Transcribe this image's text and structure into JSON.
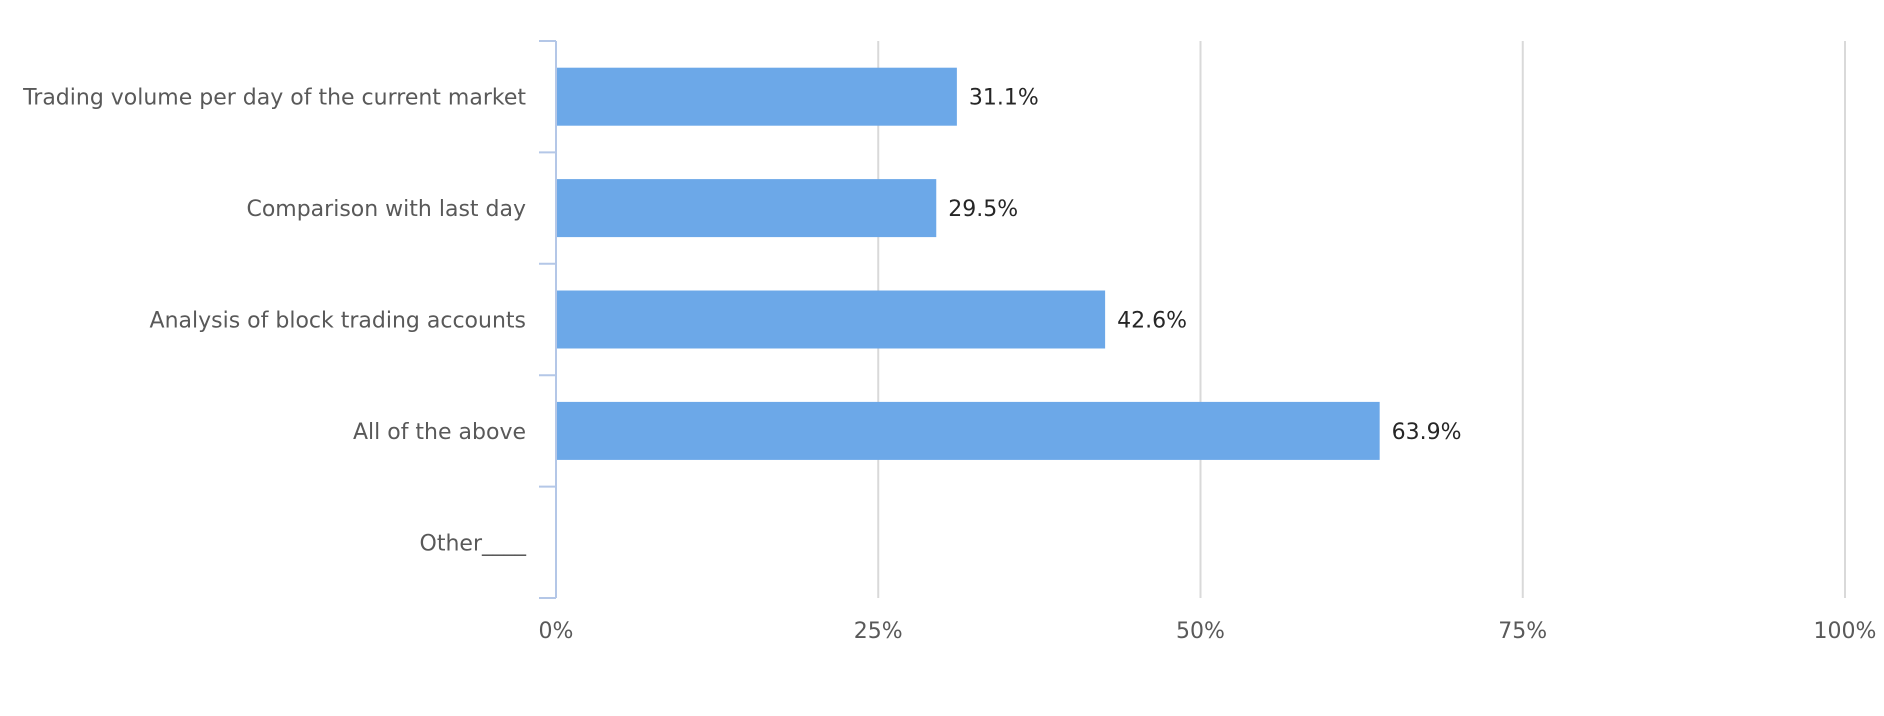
{
  "chart_data": {
    "type": "bar",
    "orientation": "horizontal",
    "categories": [
      "Trading volume per day of the current market",
      "Comparison with last day",
      "Analysis of block trading accounts",
      "All of the above",
      "Other____"
    ],
    "values": [
      31.1,
      29.5,
      42.6,
      63.9,
      0
    ],
    "data_labels": [
      "31.1%",
      "29.5%",
      "42.6%",
      "63.9%",
      ""
    ],
    "xlim": [
      0,
      100
    ],
    "x_ticks": [
      0,
      25,
      50,
      75,
      100
    ],
    "x_tick_labels": [
      "0%",
      "25%",
      "50%",
      "75%",
      "100%"
    ],
    "title": "",
    "xlabel": "",
    "ylabel": "",
    "grid": "vertical",
    "legend": "none",
    "bar_color": "#6ca8e8",
    "axis_color": "#b4c7e7",
    "grid_color": "#d9d9d9"
  }
}
